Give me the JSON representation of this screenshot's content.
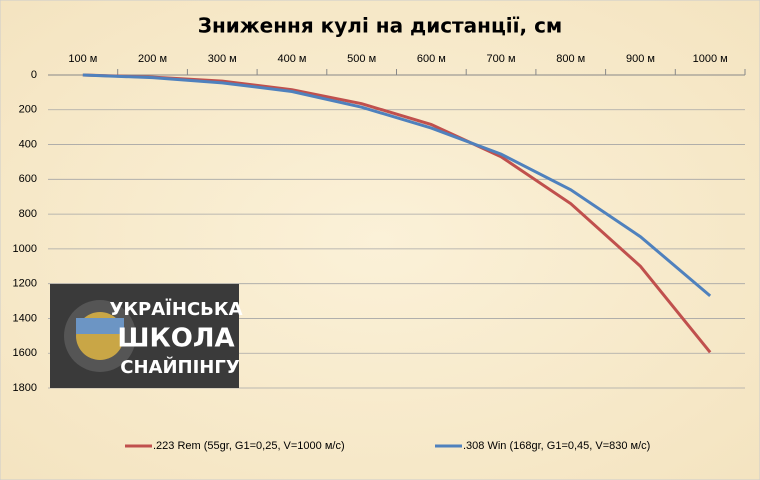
{
  "chart_data": {
    "type": "line",
    "title": "Зниження кулі на дистанції, см",
    "categories": [
      "100 м",
      "200 м",
      "300 м",
      "400 м",
      "500 м",
      "600 м",
      "700 м",
      "800 м",
      "900 м",
      "1000 м"
    ],
    "series": [
      {
        "name": ".223 Rem (55gr, G1=0,25, V=1000 м/с)",
        "color": "#c0504d",
        "values": [
          0,
          12,
          35,
          85,
          165,
          285,
          470,
          740,
          1100,
          1595
        ]
      },
      {
        "name": ".308 Win (168gr, G1=0,45, V=830 м/с)",
        "color": "#4f81bd",
        "values": [
          0,
          15,
          45,
          95,
          185,
          305,
          455,
          660,
          930,
          1270
        ]
      }
    ],
    "ylim": [
      0,
      1800
    ],
    "yticks": [
      0,
      200,
      400,
      600,
      800,
      1000,
      1200,
      1400,
      1600,
      1800
    ],
    "y_inverted": true,
    "grid": true,
    "legend": "bottom",
    "logo": [
      "УКРАЇНСЬКА",
      "ШКОЛА",
      "СНАЙПІНГУ"
    ]
  }
}
